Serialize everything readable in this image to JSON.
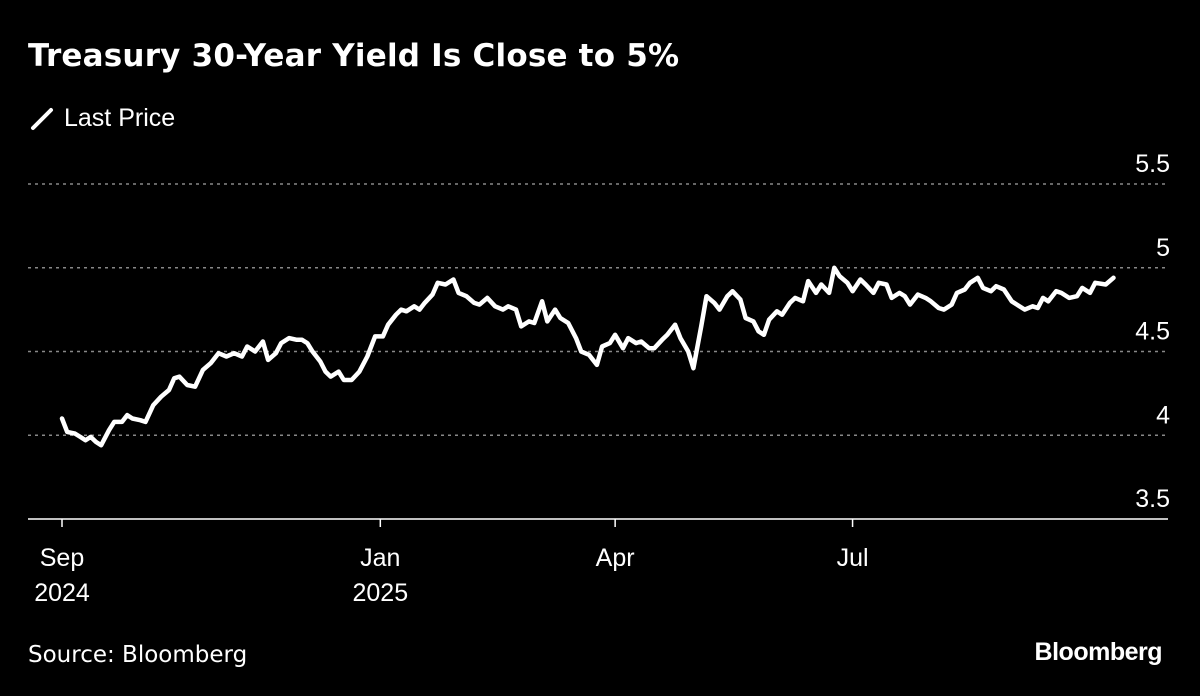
{
  "chart_data": {
    "type": "line",
    "title": "Treasury 30-Year Yield Is Close to 5%",
    "legend": {
      "placement": "top-left",
      "entries": [
        "Last Price"
      ]
    },
    "series": [
      {
        "name": "Last Price",
        "color": "#ffffff",
        "points": [
          [
            "2024-09-01",
            4.1
          ],
          [
            "2024-09-03",
            4.02
          ],
          [
            "2024-09-06",
            4.01
          ],
          [
            "2024-09-08",
            3.99
          ],
          [
            "2024-09-10",
            3.97
          ],
          [
            "2024-09-12",
            3.99
          ],
          [
            "2024-09-14",
            3.96
          ],
          [
            "2024-09-16",
            3.94
          ],
          [
            "2024-09-19",
            4.03
          ],
          [
            "2024-09-21",
            4.08
          ],
          [
            "2024-09-24",
            4.08
          ],
          [
            "2024-09-26",
            4.12
          ],
          [
            "2024-09-28",
            4.1
          ],
          [
            "2024-10-01",
            4.09
          ],
          [
            "2024-10-03",
            4.08
          ],
          [
            "2024-10-06",
            4.18
          ],
          [
            "2024-10-09",
            4.23
          ],
          [
            "2024-10-12",
            4.27
          ],
          [
            "2024-10-14",
            4.34
          ],
          [
            "2024-10-16",
            4.35
          ],
          [
            "2024-10-19",
            4.3
          ],
          [
            "2024-10-22",
            4.29
          ],
          [
            "2024-10-25",
            4.39
          ],
          [
            "2024-10-28",
            4.43
          ],
          [
            "2024-10-31",
            4.49
          ],
          [
            "2024-11-03",
            4.47
          ],
          [
            "2024-11-06",
            4.49
          ],
          [
            "2024-11-09",
            4.47
          ],
          [
            "2024-11-11",
            4.53
          ],
          [
            "2024-11-14",
            4.5
          ],
          [
            "2024-11-17",
            4.56
          ],
          [
            "2024-11-19",
            4.45
          ],
          [
            "2024-11-22",
            4.49
          ],
          [
            "2024-11-24",
            4.55
          ],
          [
            "2024-11-27",
            4.58
          ],
          [
            "2024-11-30",
            4.57
          ],
          [
            "2024-12-02",
            4.57
          ],
          [
            "2024-12-04",
            4.55
          ],
          [
            "2024-12-06",
            4.5
          ],
          [
            "2024-12-09",
            4.44
          ],
          [
            "2024-12-11",
            4.38
          ],
          [
            "2024-12-13",
            4.35
          ],
          [
            "2024-12-16",
            4.38
          ],
          [
            "2024-12-18",
            4.33
          ],
          [
            "2024-12-21",
            4.33
          ],
          [
            "2024-12-24",
            4.38
          ],
          [
            "2024-12-27",
            4.47
          ],
          [
            "2024-12-30",
            4.59
          ],
          [
            "2025-01-02",
            4.59
          ],
          [
            "2025-01-04",
            4.66
          ],
          [
            "2025-01-07",
            4.72
          ],
          [
            "2025-01-09",
            4.75
          ],
          [
            "2025-01-11",
            4.74
          ],
          [
            "2025-01-14",
            4.77
          ],
          [
            "2025-01-16",
            4.75
          ],
          [
            "2025-01-18",
            4.79
          ],
          [
            "2025-01-21",
            4.84
          ],
          [
            "2025-01-23",
            4.91
          ],
          [
            "2025-01-26",
            4.9
          ],
          [
            "2025-01-29",
            4.93
          ],
          [
            "2025-01-31",
            4.85
          ],
          [
            "2025-02-03",
            4.83
          ],
          [
            "2025-02-06",
            4.79
          ],
          [
            "2025-02-08",
            4.78
          ],
          [
            "2025-02-11",
            4.82
          ],
          [
            "2025-02-14",
            4.77
          ],
          [
            "2025-02-17",
            4.75
          ],
          [
            "2025-02-19",
            4.77
          ],
          [
            "2025-02-22",
            4.75
          ],
          [
            "2025-02-24",
            4.65
          ],
          [
            "2025-02-27",
            4.68
          ],
          [
            "2025-03-01",
            4.67
          ],
          [
            "2025-03-04",
            4.8
          ],
          [
            "2025-03-06",
            4.68
          ],
          [
            "2025-03-09",
            4.75
          ],
          [
            "2025-03-11",
            4.7
          ],
          [
            "2025-03-14",
            4.67
          ],
          [
            "2025-03-17",
            4.58
          ],
          [
            "2025-03-19",
            4.5
          ],
          [
            "2025-03-22",
            4.48
          ],
          [
            "2025-03-25",
            4.42
          ],
          [
            "2025-03-27",
            4.53
          ],
          [
            "2025-03-30",
            4.55
          ],
          [
            "2025-04-01",
            4.6
          ],
          [
            "2025-04-04",
            4.52
          ],
          [
            "2025-04-06",
            4.58
          ],
          [
            "2025-04-09",
            4.55
          ],
          [
            "2025-04-11",
            4.56
          ],
          [
            "2025-04-14",
            4.52
          ],
          [
            "2025-04-16",
            4.52
          ],
          [
            "2025-04-19",
            4.57
          ],
          [
            "2025-04-21",
            4.6
          ],
          [
            "2025-04-24",
            4.66
          ],
          [
            "2025-04-26",
            4.58
          ],
          [
            "2025-04-29",
            4.5
          ],
          [
            "2025-05-01",
            4.4
          ],
          [
            "2025-05-04",
            4.65
          ],
          [
            "2025-05-06",
            4.83
          ],
          [
            "2025-05-09",
            4.79
          ],
          [
            "2025-05-11",
            4.75
          ],
          [
            "2025-05-14",
            4.83
          ],
          [
            "2025-05-16",
            4.86
          ],
          [
            "2025-05-19",
            4.81
          ],
          [
            "2025-05-21",
            4.7
          ],
          [
            "2025-05-24",
            4.68
          ],
          [
            "2025-05-26",
            4.62
          ],
          [
            "2025-05-28",
            4.6
          ],
          [
            "2025-05-30",
            4.69
          ],
          [
            "2025-06-02",
            4.74
          ],
          [
            "2025-06-04",
            4.72
          ],
          [
            "2025-06-07",
            4.79
          ],
          [
            "2025-06-09",
            4.82
          ],
          [
            "2025-06-12",
            4.8
          ],
          [
            "2025-06-14",
            4.92
          ],
          [
            "2025-06-17",
            4.85
          ],
          [
            "2025-06-19",
            4.9
          ],
          [
            "2025-06-22",
            4.85
          ],
          [
            "2025-06-24",
            5.0
          ],
          [
            "2025-06-26",
            4.95
          ],
          [
            "2025-06-29",
            4.91
          ],
          [
            "2025-07-01",
            4.86
          ],
          [
            "2025-07-04",
            4.93
          ],
          [
            "2025-07-06",
            4.9
          ],
          [
            "2025-07-09",
            4.85
          ],
          [
            "2025-07-11",
            4.91
          ],
          [
            "2025-07-14",
            4.9
          ],
          [
            "2025-07-16",
            4.82
          ],
          [
            "2025-07-19",
            4.85
          ],
          [
            "2025-07-21",
            4.83
          ],
          [
            "2025-07-23",
            4.78
          ],
          [
            "2025-07-26",
            4.84
          ],
          [
            "2025-07-29",
            4.82
          ],
          [
            "2025-07-31",
            4.8
          ],
          [
            "2025-08-03",
            4.76
          ],
          [
            "2025-08-05",
            4.75
          ],
          [
            "2025-08-08",
            4.78
          ],
          [
            "2025-08-10",
            4.85
          ],
          [
            "2025-08-13",
            4.87
          ],
          [
            "2025-08-15",
            4.91
          ],
          [
            "2025-08-18",
            4.94
          ],
          [
            "2025-08-20",
            4.88
          ],
          [
            "2025-08-23",
            4.86
          ],
          [
            "2025-08-25",
            4.89
          ],
          [
            "2025-08-28",
            4.87
          ],
          [
            "2025-08-31",
            4.8
          ],
          [
            "2025-09-02",
            4.78
          ],
          [
            "2025-09-05",
            4.75
          ],
          [
            "2025-09-08",
            4.77
          ],
          [
            "2025-09-10",
            4.76
          ],
          [
            "2025-09-12",
            4.82
          ],
          [
            "2025-09-14",
            4.8
          ],
          [
            "2025-09-17",
            4.86
          ],
          [
            "2025-09-19",
            4.85
          ],
          [
            "2025-09-22",
            4.82
          ],
          [
            "2025-09-25",
            4.83
          ],
          [
            "2025-09-27",
            4.88
          ],
          [
            "2025-09-30",
            4.85
          ],
          [
            "2025-10-02",
            4.91
          ],
          [
            "2025-10-06",
            4.9
          ],
          [
            "2025-10-09",
            4.94
          ]
        ]
      }
    ],
    "y_axis": {
      "position": "right",
      "ylim": [
        3.5,
        5.5
      ],
      "ticks": [
        {
          "value": 3.5,
          "label": "3.5"
        },
        {
          "value": 4,
          "label": "4"
        },
        {
          "value": 4.5,
          "label": "4.5"
        },
        {
          "value": 5,
          "label": "5"
        },
        {
          "value": 5.5,
          "label": "5.5"
        }
      ]
    },
    "x_axis": {
      "xlim": [
        "2024-09-01",
        "2025-10-15"
      ],
      "ticks": [
        {
          "date": "2024-09-01",
          "lines": [
            "Sep",
            "2024"
          ]
        },
        {
          "date": "2025-01-01",
          "lines": [
            "Jan",
            "2025"
          ]
        },
        {
          "date": "2025-04-01",
          "lines": [
            "Apr"
          ]
        },
        {
          "date": "2025-07-01",
          "lines": [
            "Jul"
          ]
        }
      ]
    },
    "grid": {
      "horizontal": true,
      "style": "dotted",
      "color": "#888888"
    }
  },
  "footer": {
    "source": "Source: Bloomberg",
    "brand": "Bloomberg"
  }
}
